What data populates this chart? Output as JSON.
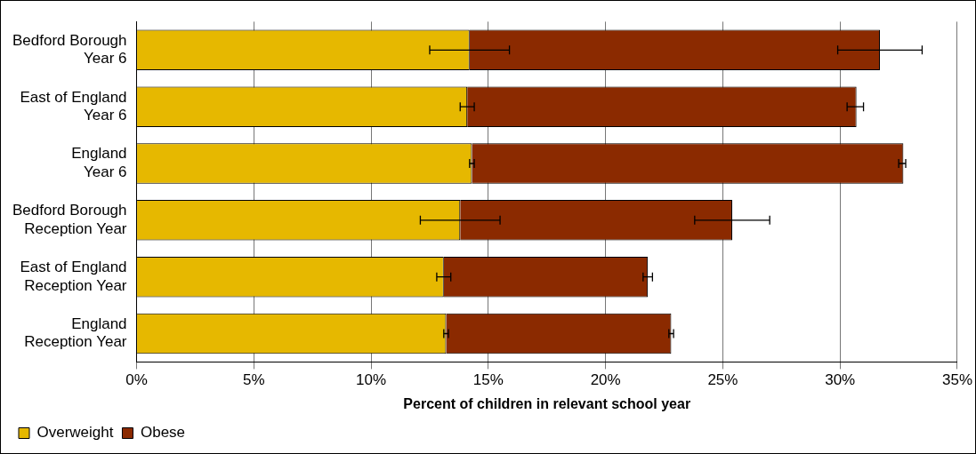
{
  "chart_data": {
    "type": "bar",
    "orientation": "horizontal",
    "stacked": true,
    "categories": [
      "Bedford Borough\nYear 6",
      "East of England\nYear 6",
      "England\nYear 6",
      "Bedford Borough\nReception Year",
      "East of England\nReception Year",
      "England\nReception Year"
    ],
    "series": [
      {
        "name": "Overweight",
        "color": "#e6b800",
        "values": [
          14.2,
          14.1,
          14.3,
          13.8,
          13.1,
          13.2
        ],
        "errors": [
          [
            12.5,
            15.9
          ],
          [
            13.8,
            14.4
          ],
          [
            14.2,
            14.4
          ],
          [
            12.1,
            15.5
          ],
          [
            12.8,
            13.4
          ],
          [
            13.1,
            13.3
          ]
        ]
      },
      {
        "name": "Obese",
        "color": "#8b2a00",
        "values": [
          17.5,
          16.6,
          18.4,
          11.6,
          8.7,
          9.6
        ],
        "errors": [
          [
            29.9,
            33.5
          ],
          [
            30.3,
            31.0
          ],
          [
            32.5,
            32.8
          ],
          [
            23.8,
            27.0
          ],
          [
            21.6,
            22.0
          ],
          [
            22.7,
            22.9
          ]
        ]
      }
    ],
    "xlabel": "Percent of children in relevant school year",
    "xlim": [
      0,
      35
    ],
    "xticks": [
      {
        "value": 0,
        "label": "0%"
      },
      {
        "value": 5,
        "label": "5%"
      },
      {
        "value": 10,
        "label": "10%"
      },
      {
        "value": 15,
        "label": "15%"
      },
      {
        "value": 20,
        "label": "20%"
      },
      {
        "value": 25,
        "label": "25%"
      },
      {
        "value": 30,
        "label": "30%"
      },
      {
        "value": 35,
        "label": "35%"
      }
    ],
    "grid": "x",
    "legend": "bottom left"
  }
}
